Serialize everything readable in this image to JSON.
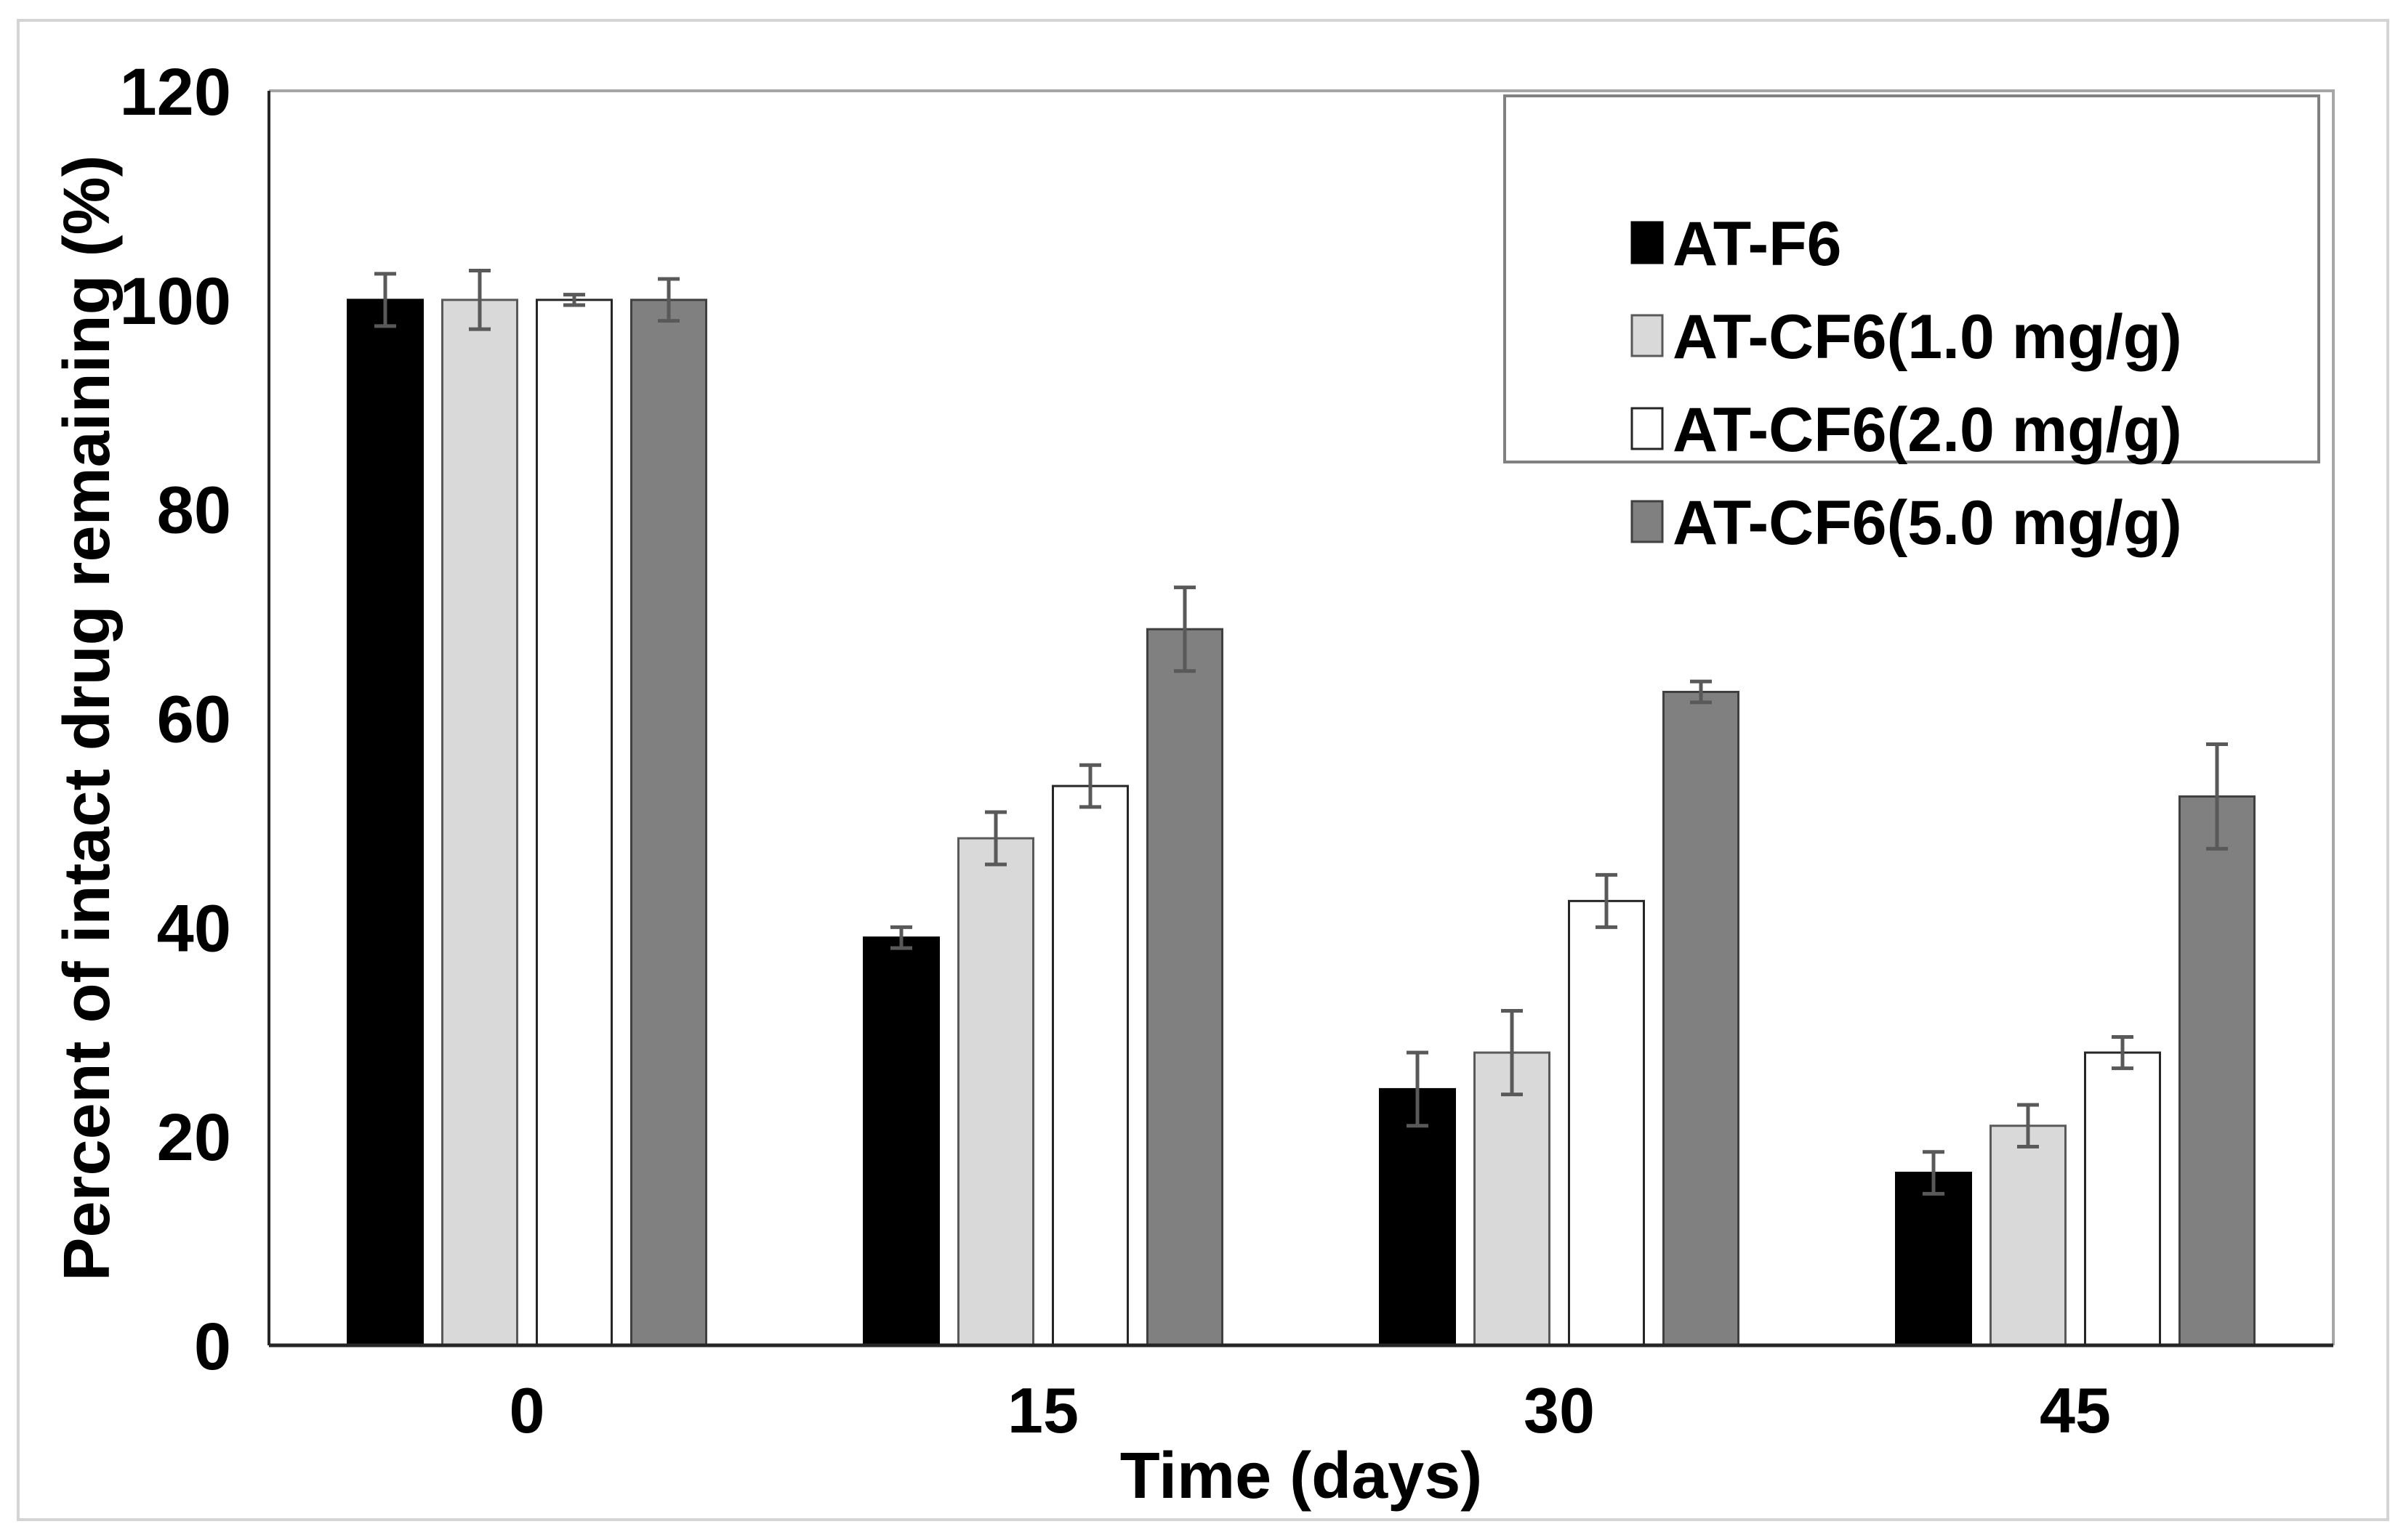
{
  "figure": {
    "description": "Grouped bar chart of drug stability",
    "background": "#ffffff",
    "figure_border_color": "#d4d4d4"
  },
  "chart_data": {
    "type": "bar",
    "title": "",
    "xlabel": "Time (days)",
    "ylabel": "Percent of intact drug remaining (%)",
    "categories": [
      "0",
      "15",
      "30",
      "45"
    ],
    "y_ticks": [
      "0",
      "20",
      "40",
      "60",
      "80",
      "100",
      "120"
    ],
    "ylim": [
      0,
      120
    ],
    "grid": false,
    "legend_position": "top-right-inside",
    "axis_color": "#262626",
    "plot_border_color": "#a6a6a6",
    "error_bar_color": "#595959",
    "legend_border_color": "#808080",
    "series": [
      {
        "name": "AT-F6",
        "fill": "#000000",
        "stroke": "#000000",
        "values": [
          100,
          39,
          24.5,
          16.5
        ],
        "errors": [
          2.5,
          1,
          3.5,
          2
        ]
      },
      {
        "name": "AT-CF6(1.0 mg/g)",
        "fill": "#d9d9d9",
        "stroke": "#595959",
        "values": [
          100,
          48.5,
          28,
          21
        ],
        "errors": [
          2.8,
          2.5,
          4,
          2
        ]
      },
      {
        "name": "AT-CF6(2.0 mg/g)",
        "fill": "#ffffff",
        "stroke": "#262626",
        "values": [
          100,
          53.5,
          42.5,
          28
        ],
        "errors": [
          0.5,
          2,
          2.5,
          1.5
        ]
      },
      {
        "name": "AT-CF6(5.0 mg/g)",
        "fill": "#808080",
        "stroke": "#404040",
        "values": [
          100,
          68.5,
          62.5,
          52.5
        ],
        "errors": [
          2,
          4,
          1,
          5
        ]
      }
    ]
  }
}
